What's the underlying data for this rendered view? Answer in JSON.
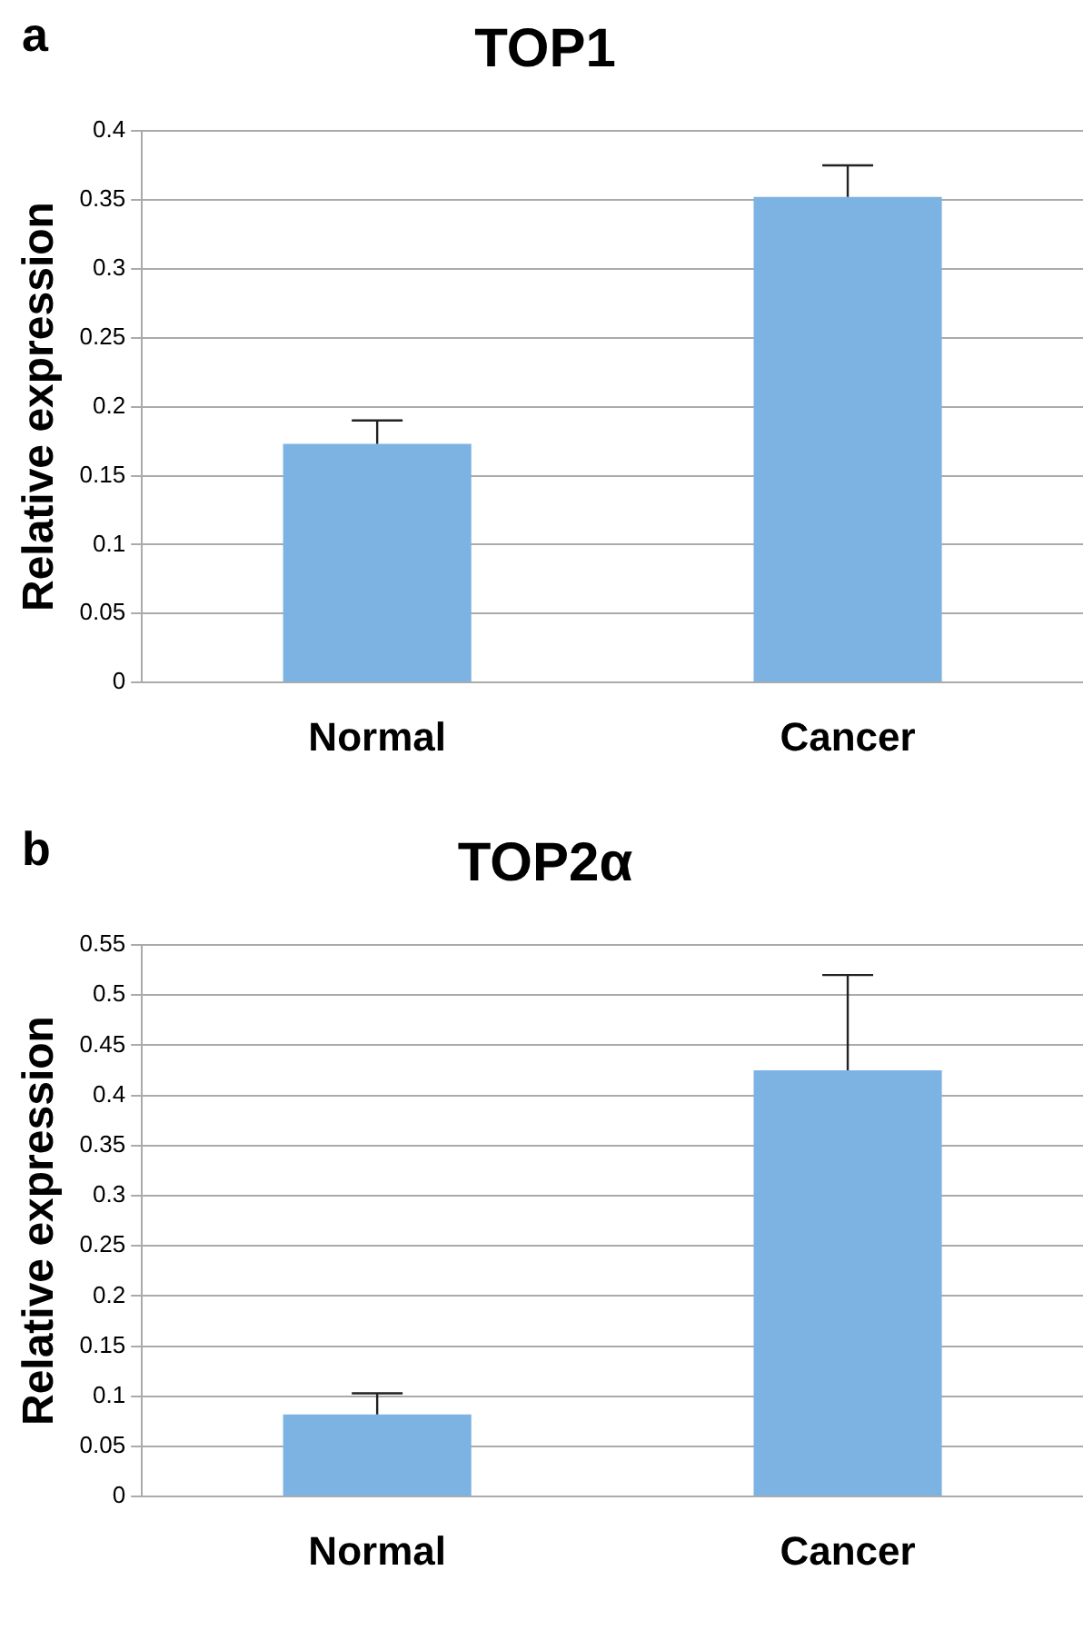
{
  "chart_data": [
    {
      "type": "bar",
      "title": "TOP1",
      "ylabel": "Relative expression",
      "categories": [
        "Normal",
        "Cancer"
      ],
      "values": [
        0.173,
        0.352
      ],
      "color": "#7db3e2",
      "errors": [
        [
          0.173,
          0.19
        ],
        [
          0.352,
          0.375
        ]
      ],
      "ylim": [
        0,
        0.4
      ],
      "yticks": [
        0,
        0.05,
        0.1,
        0.15,
        0.2,
        0.25,
        0.3,
        0.35,
        0.4
      ],
      "grid": "y",
      "annotations": [
        "a"
      ]
    },
    {
      "type": "bar",
      "title": "TOP2α",
      "ylabel": "Relative expression",
      "categories": [
        "Normal",
        "Cancer"
      ],
      "values": [
        0.082,
        0.425
      ],
      "color": "#7db3e2",
      "errors": [
        [
          0.082,
          0.103
        ],
        [
          0.425,
          0.52
        ]
      ],
      "ylim": [
        0,
        0.55
      ],
      "yticks": [
        0,
        0.05,
        0.1,
        0.15,
        0.2,
        0.25,
        0.3,
        0.35,
        0.4,
        0.45,
        0.5,
        0.55
      ],
      "grid": "y",
      "annotations": [
        "b"
      ]
    }
  ]
}
